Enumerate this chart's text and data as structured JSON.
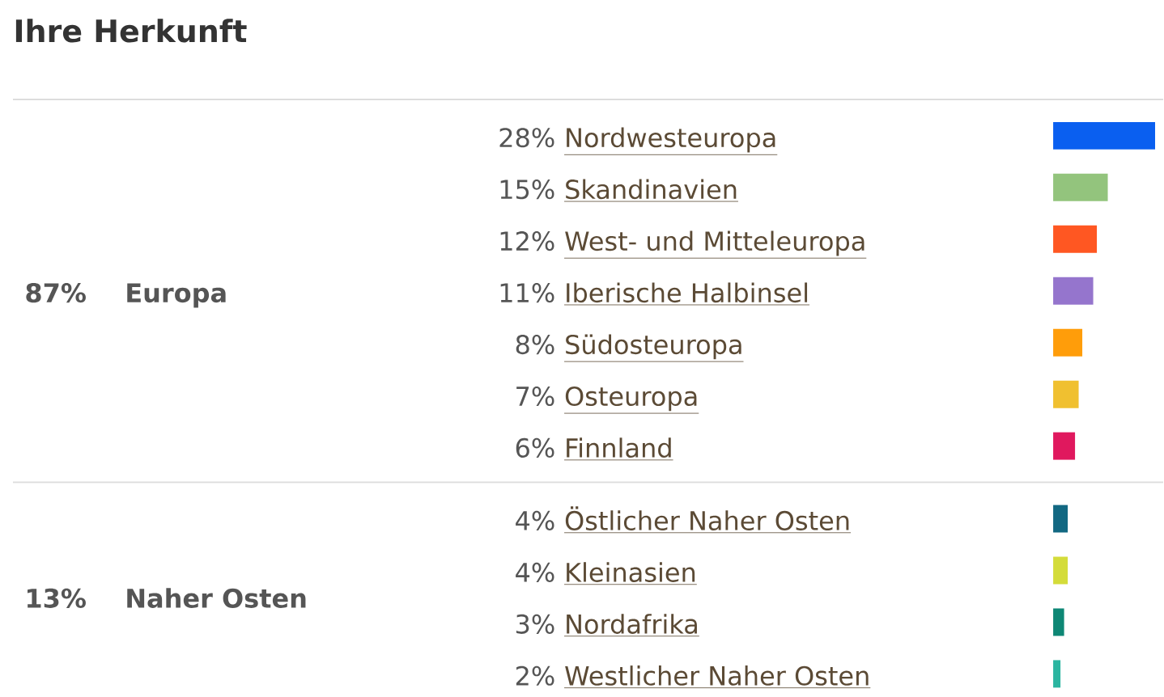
{
  "chart_data": {
    "type": "bar",
    "orientation": "horizontal",
    "title": "Ihre Herkunft",
    "categories": [
      "Nordwesteuropa",
      "Skandinavien",
      "West- und Mitteleuropa",
      "Iberische Halbinsel",
      "Südosteuropa",
      "Osteuropa",
      "Finnland",
      "Östlicher Naher Osten",
      "Kleinasien",
      "Nordafrika",
      "Westlicher Naher Osten"
    ],
    "values": [
      28,
      15,
      12,
      11,
      8,
      7,
      6,
      4,
      4,
      3,
      2
    ],
    "value_labels": [
      "28%",
      "15%",
      "12%",
      "11%",
      "8%",
      "7%",
      "6%",
      "4%",
      "4%",
      "3%",
      "2%"
    ],
    "colors": [
      "#0a5ff0",
      "#93c47d",
      "#ff5722",
      "#9575cd",
      "#ff9d0a",
      "#f0c030",
      "#e0185e",
      "#126882",
      "#d4dc3a",
      "#0e8775",
      "#2bb5a0"
    ],
    "annotations": [
      "87%",
      "Europa",
      "13%",
      "Naher Osten"
    ]
  }
}
